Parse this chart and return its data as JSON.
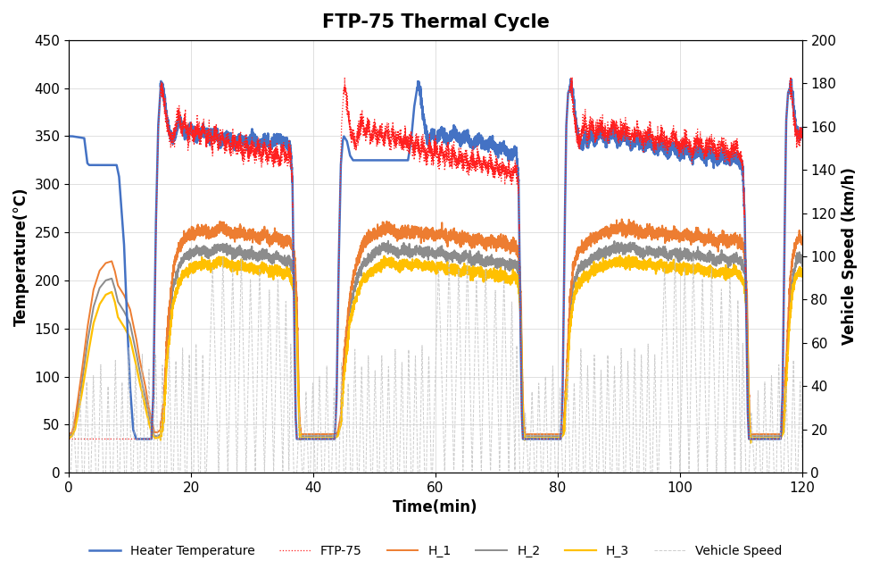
{
  "title": "FTP-75 Thermal Cycle",
  "xlabel": "Time(min)",
  "ylabel_left": "Temperature(°C)",
  "ylabel_right": "Vehicle Speed (km/h)",
  "xlim": [
    0,
    120
  ],
  "ylim_left": [
    0,
    450
  ],
  "ylim_right": [
    0,
    200
  ],
  "yticks_left": [
    0,
    50,
    100,
    150,
    200,
    250,
    300,
    350,
    400,
    450
  ],
  "yticks_right": [
    0,
    20,
    40,
    60,
    80,
    100,
    120,
    140,
    160,
    180,
    200
  ],
  "xticks": [
    0,
    20,
    40,
    60,
    80,
    100,
    120
  ],
  "colors": {
    "heater": "#4472C4",
    "ftp75": "#FF2020",
    "h1": "#ED7D31",
    "h2": "#8C8C8C",
    "h3": "#FFC000",
    "speed": "#C0C0C0"
  },
  "legend_labels": [
    "Heater Temperature",
    "FTP-75",
    "H_1",
    "H_2",
    "H_3",
    "Vehicle Speed"
  ],
  "title_fontsize": 15,
  "label_fontsize": 12,
  "tick_fontsize": 11
}
